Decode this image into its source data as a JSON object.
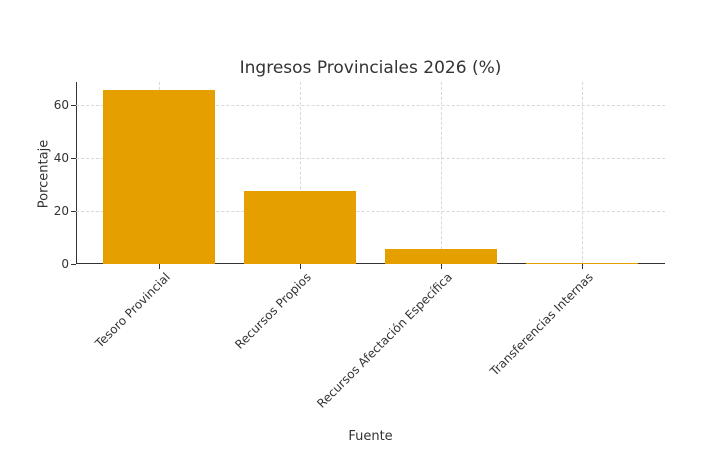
{
  "chart_data": {
    "type": "bar",
    "title": "Ingresos Provinciales 2026 (%)",
    "xlabel": "Fuente",
    "ylabel": "Porcentaje",
    "categories": [
      "Tesoro Provincial",
      "Recursos Propios",
      "Recursos Afectación Específica",
      "Transferencias Internas"
    ],
    "values": [
      65.5,
      27.5,
      5.7,
      0.5
    ],
    "ylim": [
      0,
      68.7
    ],
    "yticks": [
      0,
      20,
      40,
      60
    ],
    "grid": true,
    "bar_color": "#E5A000",
    "legend": null
  }
}
